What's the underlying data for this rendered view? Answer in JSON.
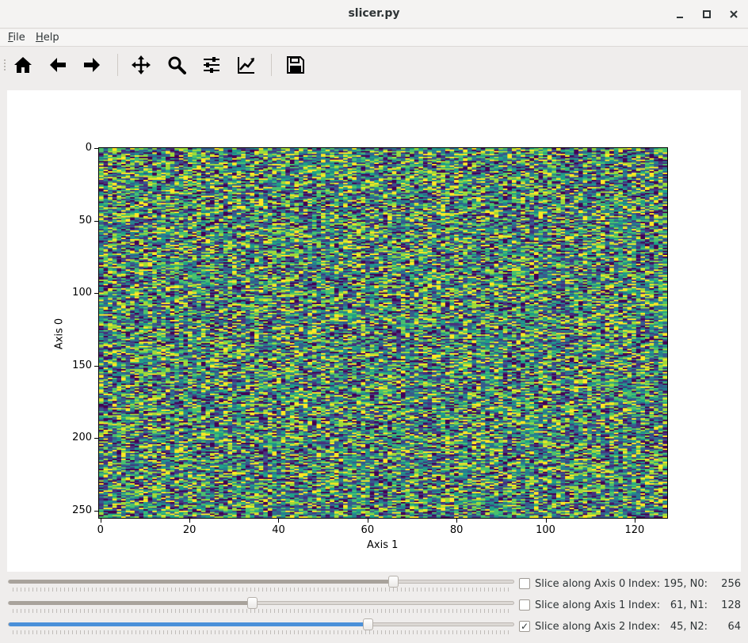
{
  "window": {
    "title": "slicer.py"
  },
  "menu": {
    "file": "File",
    "file_mnemonic": "F",
    "file_rest": "ile",
    "help_mnemonic": "H",
    "help_rest": "elp"
  },
  "toolbar": {
    "buttons": [
      "home-icon",
      "back-arrow-icon",
      "forward-arrow-icon",
      "pan-move-icon",
      "zoom-magnifier-icon",
      "configure-subplots-icon",
      "edit-axis-icon",
      "save-floppy-icon"
    ]
  },
  "chart_data": {
    "type": "heatmap",
    "colormap": "viridis",
    "rows": 256,
    "cols": 128,
    "xlabel": "Axis 1",
    "ylabel": "Axis 0",
    "xticks": [
      "0",
      "20",
      "40",
      "60",
      "80",
      "100",
      "120"
    ],
    "xtick_values": [
      0,
      20,
      40,
      60,
      80,
      100,
      120
    ],
    "yticks": [
      "0",
      "50",
      "100",
      "150",
      "200",
      "250"
    ],
    "ytick_values": [
      0,
      50,
      100,
      150,
      200,
      250
    ],
    "xlim": [
      -0.5,
      127.5
    ],
    "ylim": [
      255.5,
      -0.5
    ],
    "values": "uniform random noise"
  },
  "sliders": [
    {
      "value": 195,
      "max": 255,
      "active": false,
      "label": "Slice along Axis 0",
      "checked": false,
      "index_label": "Index:",
      "index_value": "195, N0:",
      "size": "256"
    },
    {
      "value": 61,
      "max": 127,
      "active": false,
      "label": "Slice along Axis 1",
      "checked": false,
      "index_label": "Index:",
      "index_value": "61, N1:",
      "size": "128"
    },
    {
      "value": 45,
      "max": 63,
      "active": true,
      "label": "Slice along Axis 2",
      "checked": true,
      "index_label": "Index:",
      "index_value": "45, N2:",
      "size": "64"
    }
  ],
  "colors": {
    "accent": "#4a90d9",
    "slider_fill": "#a8a29b",
    "check_mark": "✓"
  }
}
